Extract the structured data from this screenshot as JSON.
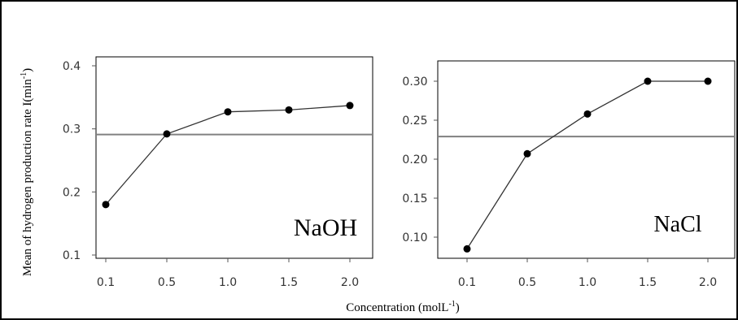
{
  "ylabel_main": "Mean of hydrogen production rate I(min",
  "ylabel_sup": "-1",
  "ylabel_close": ")",
  "xlabel_main": "Concentration (molL",
  "xlabel_sup": "-1",
  "xlabel_close": ")",
  "chart_data": [
    {
      "type": "line",
      "annotation": "NaOH",
      "categories": [
        "0.1",
        "0.5",
        "1.0",
        "1.5",
        "2.0"
      ],
      "series": [
        {
          "values": [
            0.18,
            0.292,
            0.327,
            0.33,
            0.337
          ]
        }
      ],
      "reference_line": 0.291,
      "ylim": [
        0.1,
        0.4
      ],
      "yticks": [
        "0.1",
        "0.2",
        "0.3",
        "0.4"
      ],
      "grid": false,
      "point_color": "#000000",
      "reference_line_color": "#808080"
    },
    {
      "type": "line",
      "annotation": "NaCl",
      "categories": [
        "0.1",
        "0.5",
        "1.0",
        "1.5",
        "2.0"
      ],
      "series": [
        {
          "values": [
            0.085,
            0.207,
            0.258,
            0.3,
            0.3
          ]
        }
      ],
      "reference_line": 0.229,
      "ylim": [
        0.1,
        0.3
      ],
      "yticks": [
        "0.10",
        "0.15",
        "0.20",
        "0.25",
        "0.30"
      ],
      "grid": false,
      "point_color": "#000000",
      "reference_line_color": "#808080"
    }
  ]
}
